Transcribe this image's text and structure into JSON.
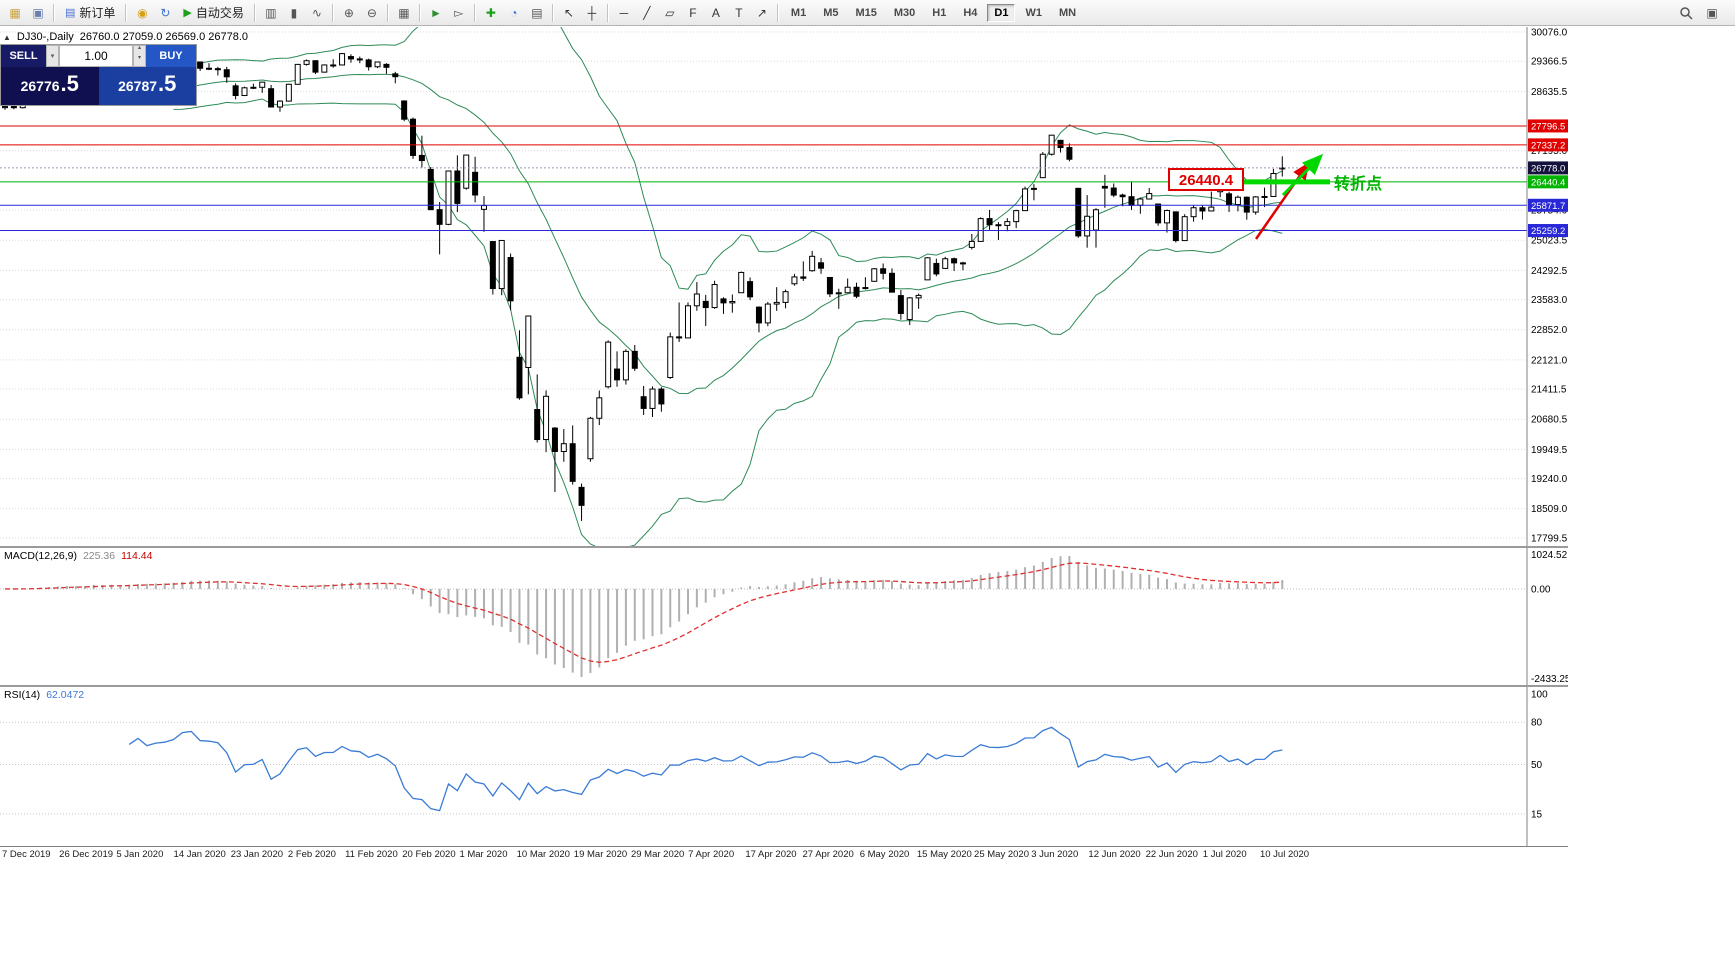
{
  "toolbar": {
    "groups": [
      [
        {
          "name": "new-chart-icon",
          "glyph": "▦",
          "color": "#caa23a"
        },
        {
          "name": "chart-profiles-icon",
          "glyph": "▣",
          "color": "#6a7fae"
        }
      ],
      [
        {
          "name": "new-order-button",
          "glyph": "▤",
          "color": "#4a6fd0",
          "label": "新订单"
        }
      ],
      [
        {
          "name": "market-watch-icon",
          "glyph": "◉",
          "color": "#d4a017"
        },
        {
          "name": "refresh-icon",
          "glyph": "↻",
          "color": "#3f6fd1"
        },
        {
          "name": "autotrading-button",
          "glyph": "▶",
          "color": "#1ea01e",
          "label": "自动交易"
        }
      ],
      [
        {
          "name": "bar-chart-icon",
          "glyph": "▥",
          "color": "#555555"
        },
        {
          "name": "candlestick-chart-icon",
          "glyph": "▮",
          "color": "#555555"
        },
        {
          "name": "line-chart-icon",
          "glyph": "∿",
          "color": "#555555"
        }
      ],
      [
        {
          "name": "zoom-in-icon",
          "glyph": "⊕",
          "color": "#555555"
        },
        {
          "name": "zoom-out-icon",
          "glyph": "⊖",
          "color": "#555555"
        }
      ],
      [
        {
          "name": "tile-windows-icon",
          "glyph": "▦",
          "color": "#555555"
        }
      ],
      [
        {
          "name": "auto-scroll-icon",
          "glyph": "►",
          "color": "#2f8f2f"
        },
        {
          "name": "chart-shift-icon",
          "glyph": "▻",
          "color": "#555555"
        }
      ],
      [
        {
          "name": "indicators-icon",
          "glyph": "✚",
          "color": "#1ea01e"
        },
        {
          "name": "periods-icon",
          "glyph": "◔",
          "color": "#3f6fd1"
        },
        {
          "name": "templates-icon",
          "glyph": "▤",
          "color": "#555555"
        }
      ],
      [
        {
          "name": "cursor-icon",
          "glyph": "↖",
          "color": "#333333"
        },
        {
          "name": "crosshair-icon",
          "glyph": "┼",
          "color": "#333333"
        }
      ],
      [
        {
          "name": "horizontal-line-icon",
          "glyph": "─",
          "color": "#333333"
        },
        {
          "name": "trendline-icon",
          "glyph": "╱",
          "color": "#333333"
        },
        {
          "name": "equidistant-channel-icon",
          "glyph": "▱",
          "color": "#333333"
        },
        {
          "name": "fibonacci-icon",
          "glyph": "F",
          "color": "#333333"
        },
        {
          "name": "text-icon",
          "glyph": "A",
          "color": "#333333"
        },
        {
          "name": "label-icon",
          "glyph": "T",
          "color": "#333333"
        },
        {
          "name": "arrow-tools-icon",
          "glyph": "↗",
          "color": "#333333"
        }
      ]
    ],
    "timeframes": [
      "M1",
      "M5",
      "M15",
      "M30",
      "H1",
      "H4",
      "D1",
      "W1",
      "MN"
    ],
    "active_timeframe": "D1"
  },
  "chart": {
    "symbol_title": "DJ30-,Daily",
    "ohlc_text": "26760.0 27059.0 26569.0 26778.0",
    "trade_panel": {
      "sell_label": "SELL",
      "buy_label": "BUY",
      "volume": "1.00",
      "sell_price_main": "26776",
      "sell_price_frac": ".5",
      "buy_price_main": "26787",
      "buy_price_frac": ".5"
    },
    "price_axis": {
      "ticks": [
        30076.0,
        29366.5,
        28635.5,
        27195.0,
        25754.0,
        25023.5,
        24292.5,
        23583.0,
        22852.0,
        22121.0,
        21411.5,
        20680.5,
        19949.5,
        19240.0,
        18509.0,
        17799.5
      ],
      "top_price": 30197,
      "bottom_price": 17605
    },
    "hlines": [
      {
        "value": 27796.5,
        "label": "27796.5",
        "color": "#e00000"
      },
      {
        "value": 27337.2,
        "label": "27337.2",
        "color": "#e00000"
      },
      {
        "value": 26440.4,
        "label": "26440.4",
        "color": "#00b400"
      },
      {
        "value": 25871.7,
        "label": "25871.7",
        "color": "#2828d8"
      },
      {
        "value": 25259.2,
        "label": "25259.2",
        "color": "#2828d8"
      }
    ],
    "bid_line": {
      "value": 26778.0,
      "label": "26778.0",
      "color": "#12123c"
    },
    "annotations": {
      "callout_text": "26440.4",
      "callout_color": "#e00000",
      "highlight_color": "#00d800",
      "turning_point_text": "转折点",
      "turning_point_color": "#00b400",
      "red_arrow_color": "#e00000"
    }
  },
  "macd": {
    "title": "MACD(12,26,9)",
    "main_value": "225.36",
    "signal_value": "114.44",
    "axis_top": "1024.52",
    "axis_zero": "0.00",
    "axis_bottom": "-2433.25"
  },
  "rsi": {
    "title": "RSI(14)",
    "value": "62.0472",
    "levels": [
      80,
      50,
      15
    ],
    "axis_top_label": "100"
  },
  "chart_data": {
    "type": "candlestick",
    "symbol": "DJ30-",
    "period": "Daily",
    "overlay": "Bollinger Bands (20,2)",
    "sub_indicators": [
      "MACD(12,26,9)",
      "RSI(14)"
    ],
    "x_labels": [
      "7 Dec 2019",
      "26 Dec 2019",
      "5 Jan 2020",
      "14 Jan 2020",
      "23 Jan 2020",
      "2 Feb 2020",
      "11 Feb 2020",
      "20 Feb 2020",
      "1 Mar 2020",
      "10 Mar 2020",
      "19 Mar 2020",
      "29 Mar 2020",
      "7 Apr 2020",
      "17 Apr 2020",
      "27 Apr 2020",
      "6 May 2020",
      "15 May 2020",
      "25 May 2020",
      "3 Jun 2020",
      "12 Jun 2020",
      "22 Jun 2020",
      "1 Jul 2020",
      "10 Jul 2020"
    ],
    "candles_ohlc": [
      [
        28240,
        28290,
        28190,
        28267
      ],
      [
        28267,
        28310,
        28200,
        28239
      ],
      [
        28239,
        28400,
        28220,
        28377
      ],
      [
        28377,
        28480,
        28350,
        28455
      ],
      [
        28455,
        28580,
        28430,
        28551
      ],
      [
        28551,
        28576,
        28460,
        28515
      ],
      [
        28515,
        28640,
        28500,
        28621
      ],
      [
        28621,
        28685,
        28590,
        28645
      ],
      [
        28645,
        28664,
        28420,
        28462
      ],
      [
        28462,
        28560,
        28418,
        28538
      ],
      [
        28538,
        28890,
        28530,
        28868
      ],
      [
        28868,
        28880,
        28560,
        28634
      ],
      [
        28634,
        28720,
        28550,
        28703
      ],
      [
        28703,
        28760,
        28520,
        28583
      ],
      [
        28583,
        28780,
        28556,
        28745
      ],
      [
        28745,
        28970,
        28720,
        28956
      ],
      [
        28956,
        28964,
        28760,
        28823
      ],
      [
        28823,
        28920,
        28800,
        28907
      ],
      [
        28907,
        28970,
        28860,
        28939
      ],
      [
        28939,
        29054,
        28900,
        29030
      ],
      [
        29030,
        29310,
        29020,
        29297
      ],
      [
        29297,
        29374,
        29250,
        29348
      ],
      [
        29348,
        29360,
        29130,
        29196
      ],
      [
        29196,
        29320,
        29150,
        29186
      ],
      [
        29186,
        29230,
        29020,
        29160
      ],
      [
        29160,
        29230,
        28843,
        28989
      ],
      [
        28770,
        28830,
        28440,
        28535
      ],
      [
        28535,
        28750,
        28520,
        28722
      ],
      [
        28722,
        28820,
        28690,
        28734
      ],
      [
        28734,
        28872,
        28600,
        28859
      ],
      [
        28700,
        28790,
        28250,
        28256
      ],
      [
        28256,
        28420,
        28140,
        28399
      ],
      [
        28399,
        28820,
        28390,
        28807
      ],
      [
        28807,
        29300,
        28800,
        29290
      ],
      [
        29290,
        29409,
        29260,
        29379
      ],
      [
        29379,
        29390,
        29056,
        29102
      ],
      [
        29102,
        29290,
        29090,
        29276
      ],
      [
        29276,
        29415,
        29210,
        29276
      ],
      [
        29276,
        29568,
        29270,
        29551
      ],
      [
        29480,
        29535,
        29330,
        29423
      ],
      [
        29423,
        29480,
        29320,
        29398
      ],
      [
        29398,
        29430,
        29140,
        29232
      ],
      [
        29232,
        29360,
        29200,
        29348
      ],
      [
        29290,
        29320,
        29060,
        29219
      ],
      [
        29060,
        29110,
        28830,
        28992
      ],
      [
        28402,
        28420,
        27912,
        27960
      ],
      [
        27960,
        28000,
        26998,
        27081
      ],
      [
        27081,
        27560,
        26790,
        26957
      ],
      [
        26740,
        26800,
        25752,
        25766
      ],
      [
        25766,
        25950,
        24681,
        25409
      ],
      [
        25409,
        26706,
        25391,
        26703
      ],
      [
        26703,
        27084,
        25706,
        25917
      ],
      [
        26286,
        27102,
        26250,
        27090
      ],
      [
        26671,
        27049,
        25943,
        26121
      ],
      [
        25773,
        26094,
        25226,
        25864
      ],
      [
        24992,
        24992,
        23706,
        23851
      ],
      [
        23851,
        25020,
        23690,
        25018
      ],
      [
        24604,
        24700,
        23328,
        23553
      ],
      [
        22184,
        22837,
        21154,
        21200
      ],
      [
        21936,
        23189,
        21285,
        23185
      ],
      [
        20917,
        21768,
        20116,
        20188
      ],
      [
        20188,
        21379,
        19882,
        21237
      ],
      [
        20466,
        20489,
        18917,
        19898
      ],
      [
        19898,
        20442,
        19649,
        20087
      ],
      [
        20087,
        20531,
        19094,
        19173
      ],
      [
        19028,
        19121,
        18213,
        18591
      ],
      [
        19722,
        20737,
        19649,
        20704
      ],
      [
        20704,
        21379,
        20538,
        21200
      ],
      [
        21468,
        22595,
        21427,
        22552
      ],
      [
        21898,
        22327,
        21469,
        21636
      ],
      [
        21636,
        22378,
        21522,
        22327
      ],
      [
        22327,
        22482,
        21852,
        21917
      ],
      [
        21227,
        21487,
        20784,
        20943
      ],
      [
        20943,
        21477,
        20735,
        21413
      ],
      [
        21413,
        21457,
        20863,
        21052
      ],
      [
        21693,
        22783,
        21660,
        22679
      ],
      [
        22679,
        23514,
        22555,
        22653
      ],
      [
        22653,
        23513,
        22682,
        23433
      ],
      [
        23433,
        24009,
        23313,
        23719
      ],
      [
        23540,
        23698,
        22942,
        23390
      ],
      [
        23390,
        24041,
        23360,
        23949
      ],
      [
        23600,
        23640,
        23238,
        23504
      ],
      [
        23504,
        23707,
        23266,
        23537
      ],
      [
        23750,
        24264,
        23750,
        24242
      ],
      [
        24019,
        24120,
        23570,
        23650
      ],
      [
        23400,
        23420,
        22789,
        23018
      ],
      [
        23018,
        23526,
        22938,
        23475
      ],
      [
        23475,
        23885,
        23310,
        23515
      ],
      [
        23515,
        23827,
        23371,
        23775
      ],
      [
        23967,
        24207,
        23920,
        24133
      ],
      [
        24133,
        24511,
        24036,
        24101
      ],
      [
        24284,
        24764,
        24260,
        24633
      ],
      [
        24476,
        24594,
        24209,
        24345
      ],
      [
        24120,
        24120,
        23645,
        23723
      ],
      [
        23723,
        23848,
        23361,
        23749
      ],
      [
        23749,
        24094,
        23740,
        23883
      ],
      [
        23883,
        23994,
        23618,
        23664
      ],
      [
        23866,
        24125,
        23828,
        23875
      ],
      [
        24027,
        24349,
        24020,
        24331
      ],
      [
        24331,
        24460,
        24072,
        24221
      ],
      [
        24221,
        24340,
        23754,
        23764
      ],
      [
        23680,
        23815,
        23096,
        23247
      ],
      [
        23100,
        23646,
        22965,
        23625
      ],
      [
        23625,
        23730,
        23360,
        23685
      ],
      [
        24062,
        24612,
        24060,
        24597
      ],
      [
        24460,
        24577,
        24150,
        24206
      ],
      [
        24340,
        24622,
        24330,
        24575
      ],
      [
        24575,
        24602,
        24276,
        24474
      ],
      [
        24474,
        24501,
        24294,
        24465
      ],
      [
        24850,
        25176,
        24800,
        24995
      ],
      [
        24995,
        25580,
        24990,
        25548
      ],
      [
        25548,
        25758,
        25277,
        25400
      ],
      [
        25400,
        25463,
        25031,
        25383
      ],
      [
        25383,
        25559,
        25242,
        25475
      ],
      [
        25475,
        25763,
        25316,
        25742
      ],
      [
        25742,
        26326,
        25757,
        26269
      ],
      [
        26269,
        26384,
        25992,
        26281
      ],
      [
        26542,
        27163,
        26540,
        27110
      ],
      [
        27110,
        27580,
        27077,
        27572
      ],
      [
        27447,
        27460,
        27151,
        27272
      ],
      [
        27272,
        27372,
        26938,
        26989
      ],
      [
        26282,
        26294,
        25082,
        25128
      ],
      [
        25128,
        26119,
        24843,
        25605
      ],
      [
        25270,
        25800,
        24843,
        25763
      ],
      [
        26330,
        26611,
        25811,
        26289
      ],
      [
        26289,
        26400,
        26068,
        26119
      ],
      [
        26119,
        26154,
        25848,
        26080
      ],
      [
        26080,
        26451,
        25759,
        25871
      ],
      [
        25871,
        26059,
        25667,
        26024
      ],
      [
        26024,
        26290,
        26024,
        26156
      ],
      [
        25902,
        25910,
        25376,
        25445
      ],
      [
        25445,
        25769,
        25209,
        25745
      ],
      [
        25712,
        25720,
        24971,
        25015
      ],
      [
        25015,
        25655,
        25015,
        25595
      ],
      [
        25595,
        25880,
        25475,
        25812
      ],
      [
        25812,
        25880,
        25523,
        25734
      ],
      [
        25734,
        26204,
        25733,
        25827
      ],
      [
        26200,
        26416,
        26070,
        26286
      ],
      [
        26150,
        26200,
        25709,
        25890
      ],
      [
        25890,
        26109,
        25724,
        26067
      ],
      [
        26067,
        26087,
        25523,
        25706
      ],
      [
        25706,
        26095,
        25645,
        26075
      ],
      [
        26075,
        26300,
        25828,
        26085
      ],
      [
        26085,
        26756,
        26083,
        26642
      ],
      [
        26760,
        27059,
        26569,
        26778
      ]
    ]
  }
}
